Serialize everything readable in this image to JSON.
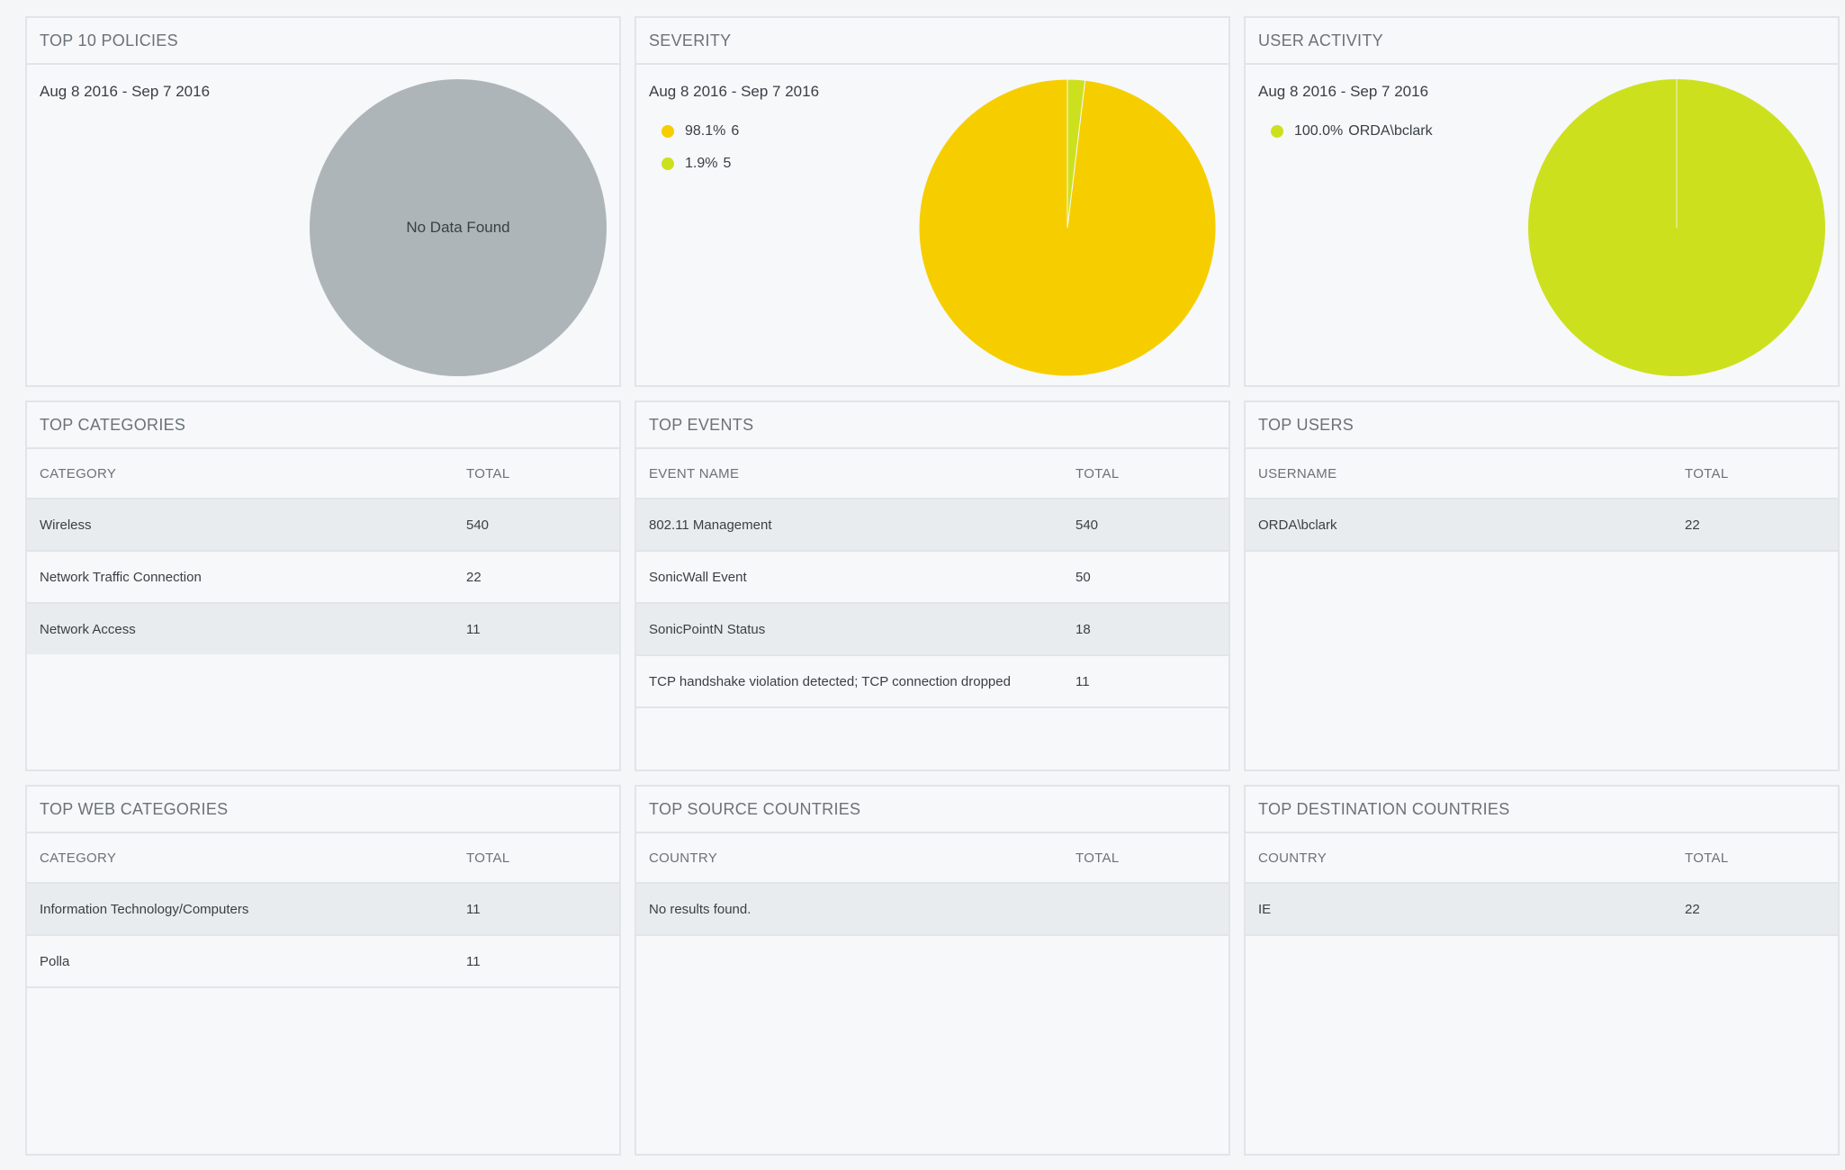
{
  "colors": {
    "yellow": "#f6ce00",
    "lime": "#cde01e",
    "gray": "#aeb5b9"
  },
  "top_policies": {
    "title": "TOP 10 POLICIES",
    "date_range": "Aug 8 2016 - Sep 7 2016",
    "empty_text": "No Data Found"
  },
  "severity": {
    "title": "SEVERITY",
    "date_range": "Aug 8 2016 - Sep 7 2016",
    "legend": [
      {
        "pct": "98.1%",
        "label": "6",
        "color": "#f6ce00"
      },
      {
        "pct": "1.9%",
        "label": "5",
        "color": "#cde01e"
      }
    ]
  },
  "user_activity": {
    "title": "USER ACTIVITY",
    "date_range": "Aug 8 2016 - Sep 7 2016",
    "legend": [
      {
        "pct": "100.0%",
        "label": "ORDA\\bclark",
        "color": "#cde01e"
      }
    ]
  },
  "top_categories": {
    "title": "TOP CATEGORIES",
    "columns": [
      "CATEGORY",
      "TOTAL"
    ],
    "rows": [
      [
        "Wireless",
        "540"
      ],
      [
        "Network Traffic Connection",
        "22"
      ],
      [
        "Network Access",
        "11"
      ]
    ]
  },
  "top_events": {
    "title": "TOP EVENTS",
    "columns": [
      "EVENT NAME",
      "TOTAL"
    ],
    "rows": [
      [
        "802.11 Management",
        "540"
      ],
      [
        "SonicWall Event",
        "50"
      ],
      [
        "SonicPointN Status",
        "18"
      ],
      [
        "TCP handshake violation detected; TCP connection dropped",
        "11"
      ]
    ]
  },
  "top_users": {
    "title": "TOP USERS",
    "columns": [
      "USERNAME",
      "TOTAL"
    ],
    "rows": [
      [
        "ORDA\\bclark",
        "22"
      ]
    ]
  },
  "top_web_categories": {
    "title": "TOP WEB CATEGORIES",
    "columns": [
      "CATEGORY",
      "TOTAL"
    ],
    "rows": [
      [
        "Information Technology/Computers",
        "11"
      ],
      [
        "Polla",
        "11"
      ]
    ]
  },
  "top_source_countries": {
    "title": "TOP SOURCE COUNTRIES",
    "columns": [
      "COUNTRY",
      "TOTAL"
    ],
    "empty_text": "No results found."
  },
  "top_destination_countries": {
    "title": "TOP DESTINATION COUNTRIES",
    "columns": [
      "COUNTRY",
      "TOTAL"
    ],
    "rows": [
      [
        "IE",
        "22"
      ]
    ]
  },
  "chart_data": [
    {
      "type": "pie",
      "title": "TOP 10 POLICIES",
      "labels": [],
      "values": []
    },
    {
      "type": "pie",
      "title": "SEVERITY",
      "labels": [
        "6",
        "5"
      ],
      "values": [
        98.1,
        1.9
      ],
      "colors": [
        "#f6ce00",
        "#cde01e"
      ]
    },
    {
      "type": "pie",
      "title": "USER ACTIVITY",
      "labels": [
        "ORDA\\bclark"
      ],
      "values": [
        100.0
      ],
      "colors": [
        "#cde01e"
      ]
    }
  ]
}
